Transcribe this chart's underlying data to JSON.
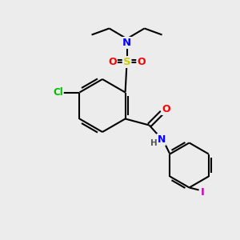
{
  "bg_color": "#ececec",
  "bond_color": "#000000",
  "atom_colors": {
    "N": "#0000ff",
    "O": "#ff0000",
    "S": "#cccc00",
    "Cl": "#00bb00",
    "I": "#cc00cc",
    "C": "#000000",
    "H": "#555555"
  }
}
